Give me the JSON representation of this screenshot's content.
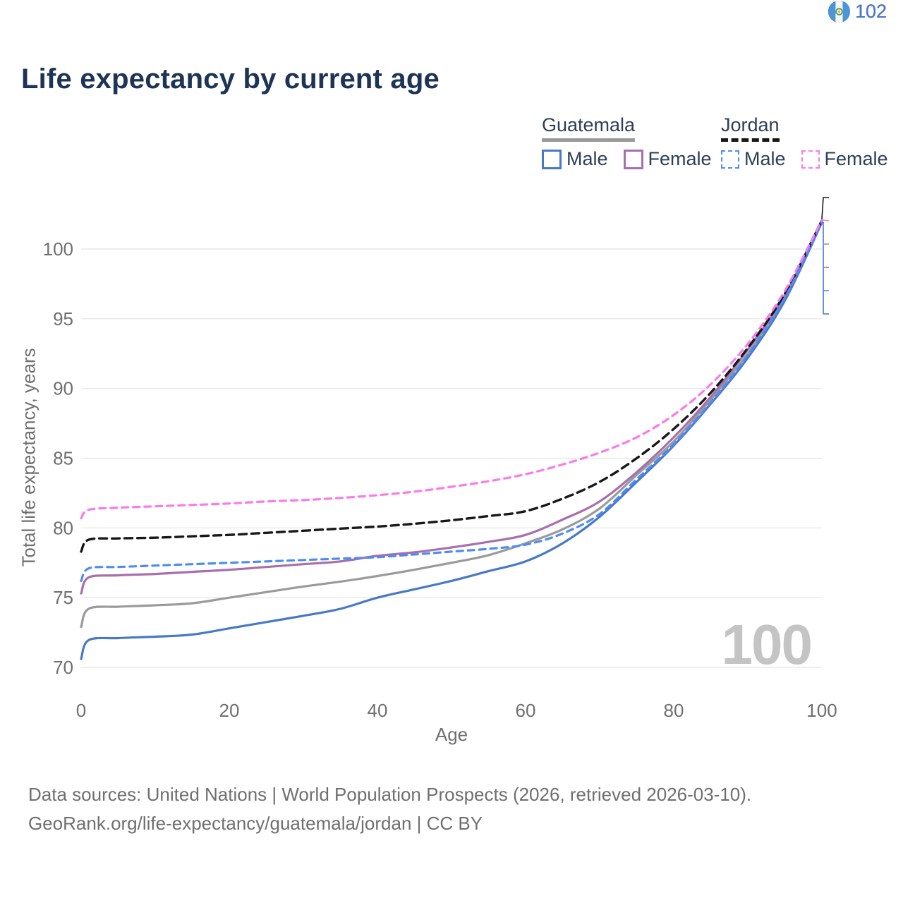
{
  "header": {
    "title": "Life expectancy by current age"
  },
  "legend": {
    "groups": [
      {
        "country": "Guatemala",
        "line_style": "solid",
        "underline_color": "#9a9a9a",
        "items": [
          {
            "label": "Male",
            "color": "#4878c8"
          },
          {
            "label": "Female",
            "color": "#a76fad"
          }
        ]
      },
      {
        "country": "Jordan",
        "line_style": "dashed",
        "underline_color": "#181818",
        "items": [
          {
            "label": "Male",
            "color": "#4d8cf5"
          },
          {
            "label": "Female",
            "color": "#fb7ae9"
          }
        ]
      }
    ]
  },
  "chart_data": {
    "type": "line",
    "title": "Life expectancy by current age",
    "xlabel": "Age",
    "ylabel": "Total life expectancy, years",
    "xlim": [
      0,
      100
    ],
    "ylim": [
      70,
      102.5
    ],
    "xticks": [
      0,
      20,
      40,
      60,
      80,
      100
    ],
    "yticks": [
      70,
      75,
      80,
      85,
      90,
      95,
      100
    ],
    "grid": "horizontal",
    "legend_position": "top-right",
    "ages": [
      0,
      1,
      5,
      10,
      15,
      20,
      25,
      30,
      35,
      40,
      45,
      50,
      55,
      60,
      65,
      70,
      75,
      80,
      85,
      90,
      95,
      100
    ],
    "series": [
      {
        "name": "Guatemala",
        "sex": "All",
        "style": "solid",
        "color": "#9a9a9a",
        "width": 3.2,
        "dash": null,
        "values": [
          72.9,
          74.2,
          74.35,
          74.45,
          74.6,
          75.0,
          75.4,
          75.8,
          76.15,
          76.55,
          77.0,
          77.5,
          78.05,
          78.9,
          79.9,
          81.4,
          83.8,
          86.2,
          89.2,
          92.5,
          96.6,
          101.95
        ]
      },
      {
        "name": "Guatemala",
        "sex": "Male",
        "style": "solid",
        "color": "#4878c8",
        "width": 3.2,
        "dash": null,
        "values": [
          70.6,
          71.95,
          72.1,
          72.2,
          72.35,
          72.8,
          73.25,
          73.7,
          74.2,
          75.0,
          75.6,
          76.2,
          76.9,
          77.6,
          78.9,
          80.8,
          83.3,
          85.9,
          88.9,
          92.2,
          96.3,
          101.9
        ]
      },
      {
        "name": "Guatemala",
        "sex": "Female",
        "style": "solid",
        "color": "#a76fad",
        "width": 3.2,
        "dash": null,
        "values": [
          75.3,
          76.45,
          76.6,
          76.7,
          76.85,
          77.0,
          77.2,
          77.4,
          77.6,
          78.0,
          78.25,
          78.6,
          79.0,
          79.5,
          80.6,
          81.9,
          84.0,
          86.5,
          89.4,
          92.8,
          96.7,
          102.0
        ]
      },
      {
        "name": "Jordan",
        "sex": "All",
        "style": "dashed",
        "color": "#181818",
        "width": 3.4,
        "dash": "11 7",
        "values": [
          78.3,
          79.15,
          79.25,
          79.3,
          79.4,
          79.5,
          79.65,
          79.8,
          79.95,
          80.1,
          80.3,
          80.55,
          80.85,
          81.2,
          82.1,
          83.3,
          85.0,
          87.1,
          89.7,
          92.9,
          96.8,
          102.05
        ]
      },
      {
        "name": "Jordan",
        "sex": "Male",
        "style": "dashed",
        "color": "#4d8cf5",
        "width": 3.2,
        "dash": "9 7",
        "values": [
          76.2,
          77.1,
          77.2,
          77.3,
          77.4,
          77.5,
          77.6,
          77.7,
          77.8,
          77.9,
          78.1,
          78.3,
          78.5,
          78.8,
          79.6,
          81.0,
          83.5,
          86.0,
          89.0,
          92.4,
          96.5,
          101.95
        ]
      },
      {
        "name": "Jordan",
        "sex": "Female",
        "style": "dashed",
        "color": "#fb7ae9",
        "width": 3.2,
        "dash": "9 7",
        "values": [
          80.7,
          81.3,
          81.45,
          81.55,
          81.65,
          81.75,
          81.9,
          82.0,
          82.15,
          82.35,
          82.6,
          82.95,
          83.35,
          83.85,
          84.55,
          85.4,
          86.5,
          88.1,
          90.3,
          93.2,
          97.0,
          102.1
        ]
      }
    ]
  },
  "end_labels": [
    {
      "country": "Jordan",
      "flag": "jordan",
      "value": "102",
      "color": "#181818"
    },
    {
      "country": "Jordan",
      "flag": "jordan",
      "value": "102",
      "color": "#fb7ae9"
    },
    {
      "country": "Guatemala",
      "flag": "guatemala",
      "value": "102",
      "color": "#9a9a9a"
    },
    {
      "country": "Guatemala",
      "flag": "guatemala",
      "value": "102",
      "color": "#a76fad"
    },
    {
      "country": "Jordan",
      "flag": "jordan",
      "value": "102",
      "color": "#4d8cf5"
    },
    {
      "country": "Guatemala",
      "flag": "guatemala",
      "value": "102",
      "color": "#4878c8"
    }
  ],
  "watermark": "100",
  "footer": {
    "line1": "Data sources: United Nations | World Population Prospects (2026, retrieved 2026-03-10).",
    "line2": "GeoRank.org/life-expectancy/guatemala/jordan | CC BY"
  }
}
